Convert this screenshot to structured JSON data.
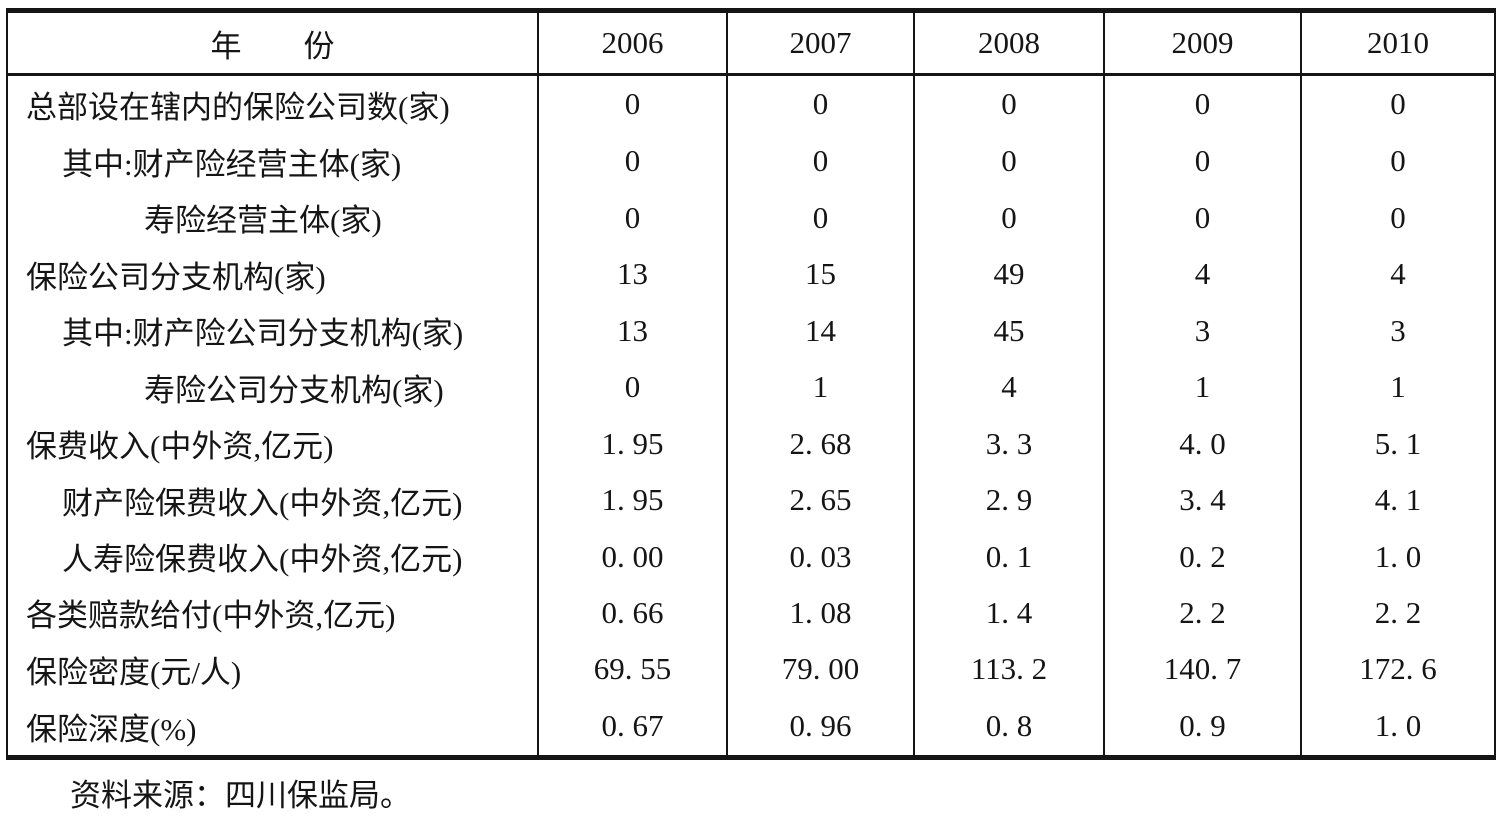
{
  "table": {
    "header": {
      "label": "年　　份",
      "years": [
        "2006",
        "2007",
        "2008",
        "2009",
        "2010"
      ]
    },
    "rows": [
      {
        "label": "总部设在辖内的保险公司数(家)",
        "indent": 0,
        "values": [
          "0",
          "0",
          "0",
          "0",
          "0"
        ]
      },
      {
        "label": "其中:财产险经营主体(家)",
        "indent": 1,
        "values": [
          "0",
          "0",
          "0",
          "0",
          "0"
        ]
      },
      {
        "label": "寿险经营主体(家)",
        "indent": 2,
        "values": [
          "0",
          "0",
          "0",
          "0",
          "0"
        ]
      },
      {
        "label": "保险公司分支机构(家)",
        "indent": 0,
        "values": [
          "13",
          "15",
          "49",
          "4",
          "4"
        ]
      },
      {
        "label": "其中:财产险公司分支机构(家)",
        "indent": 1,
        "values": [
          "13",
          "14",
          "45",
          "3",
          "3"
        ]
      },
      {
        "label": "寿险公司分支机构(家)",
        "indent": 2,
        "values": [
          "0",
          "1",
          "4",
          "1",
          "1"
        ]
      },
      {
        "label": "保费收入(中外资,亿元)",
        "indent": 0,
        "values": [
          "1. 95",
          "2. 68",
          "3. 3",
          "4. 0",
          "5. 1"
        ]
      },
      {
        "label": "财产险保费收入(中外资,亿元)",
        "indent": 1,
        "values": [
          "1. 95",
          "2. 65",
          "2. 9",
          "3. 4",
          "4. 1"
        ]
      },
      {
        "label": "人寿险保费收入(中外资,亿元)",
        "indent": 1,
        "values": [
          "0. 00",
          "0. 03",
          "0. 1",
          "0. 2",
          "1. 0"
        ]
      },
      {
        "label": "各类赔款给付(中外资,亿元)",
        "indent": 0,
        "values": [
          "0. 66",
          "1. 08",
          "1. 4",
          "2. 2",
          "2. 2"
        ]
      },
      {
        "label": "保险密度(元/人)",
        "indent": 0,
        "values": [
          "69. 55",
          "79. 00",
          "113. 2",
          "140. 7",
          "172. 6"
        ]
      },
      {
        "label": "保险深度(%)",
        "indent": 0,
        "values": [
          "0. 67",
          "0. 96",
          "0. 8",
          "0. 9",
          "1. 0"
        ]
      }
    ],
    "source_note": "资料来源：四川保监局。"
  },
  "colors": {
    "text": "#151515",
    "background": "#ffffff",
    "border": "#151515"
  }
}
